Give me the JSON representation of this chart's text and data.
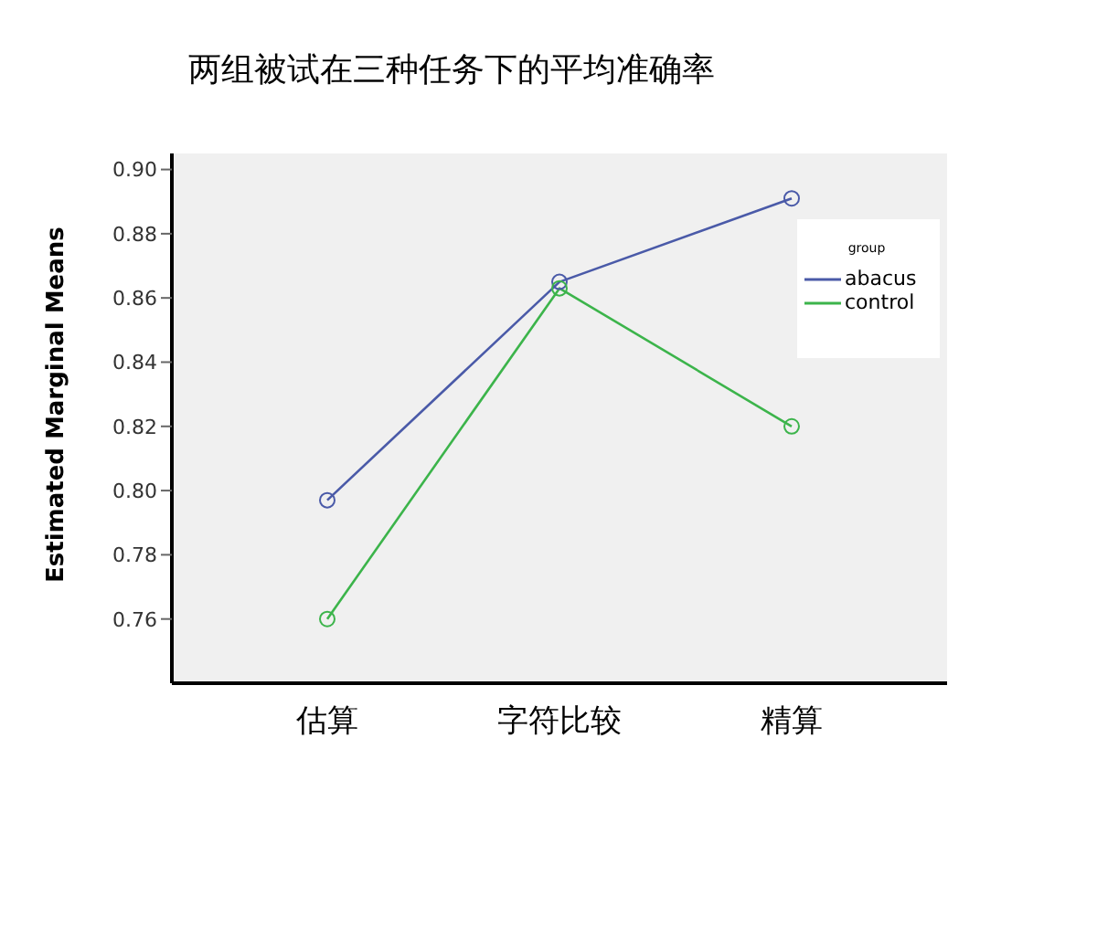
{
  "chart_data": {
    "type": "line",
    "title": "两组被试在三种任务下的平均准确率",
    "ylabel": "Estimated Marginal Means",
    "categories": [
      "估算",
      "字符比较",
      "精算"
    ],
    "legend_title": "group",
    "legend": "top right",
    "marker": "circle",
    "ylim": [
      0.74,
      0.905
    ],
    "yticks": [
      0.76,
      0.78,
      {
        "value": 0.8,
        "label": "0.80"
      },
      0.82,
      0.84,
      0.86,
      0.88,
      {
        "value": 0.9,
        "label": "0.90"
      }
    ],
    "grid": false,
    "series": [
      {
        "name": "abacus",
        "color": "#4a5aa8",
        "values": [
          0.797,
          0.865,
          0.891
        ]
      },
      {
        "name": "control",
        "color": "#3cb44b",
        "values": [
          0.76,
          0.863,
          0.82
        ]
      }
    ]
  }
}
